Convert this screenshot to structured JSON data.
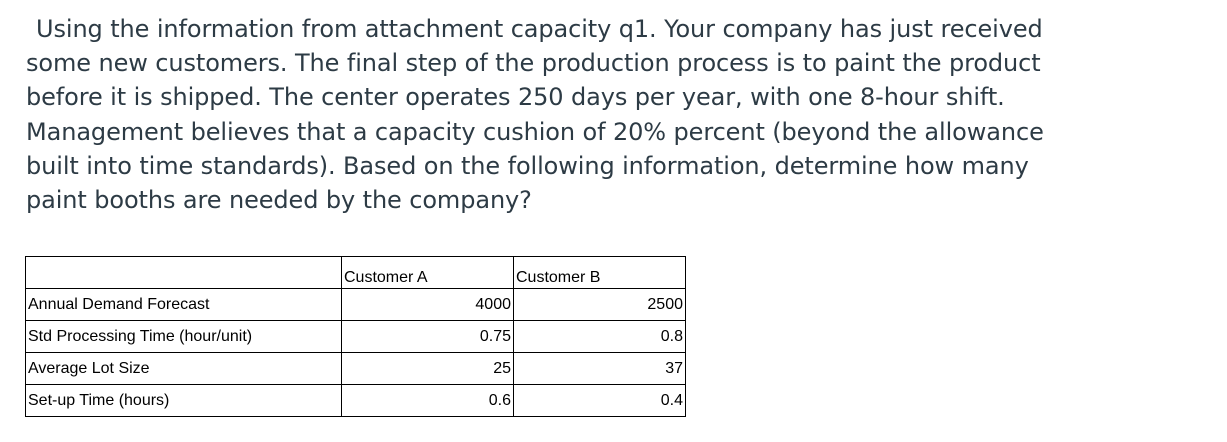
{
  "question": {
    "lines": [
      "Using the information from attachment capacity q1. Your company has just received",
      "some new customers. The final step of the production process is to paint the product",
      "before it is shipped. The center operates 250 days per year, with one 8-hour shift.",
      "Management believes that a capacity cushion of 20% percent (beyond the allowance",
      "built into time standards). Based on the following information, determine how many",
      "paint booths are needed by the company?"
    ]
  },
  "table": {
    "header": {
      "label": "",
      "col_a": "Customer A",
      "col_b": "Customer B"
    },
    "rows": [
      {
        "label": "Annual Demand Forecast",
        "a": "4000",
        "b": "2500"
      },
      {
        "label": "Std Processing Time (hour/unit)",
        "a": "0.75",
        "b": "0.8"
      },
      {
        "label": "Average Lot Size",
        "a": "25",
        "b": "37"
      },
      {
        "label": "Set-up Time (hours)",
        "a": "0.6",
        "b": "0.4"
      }
    ]
  }
}
